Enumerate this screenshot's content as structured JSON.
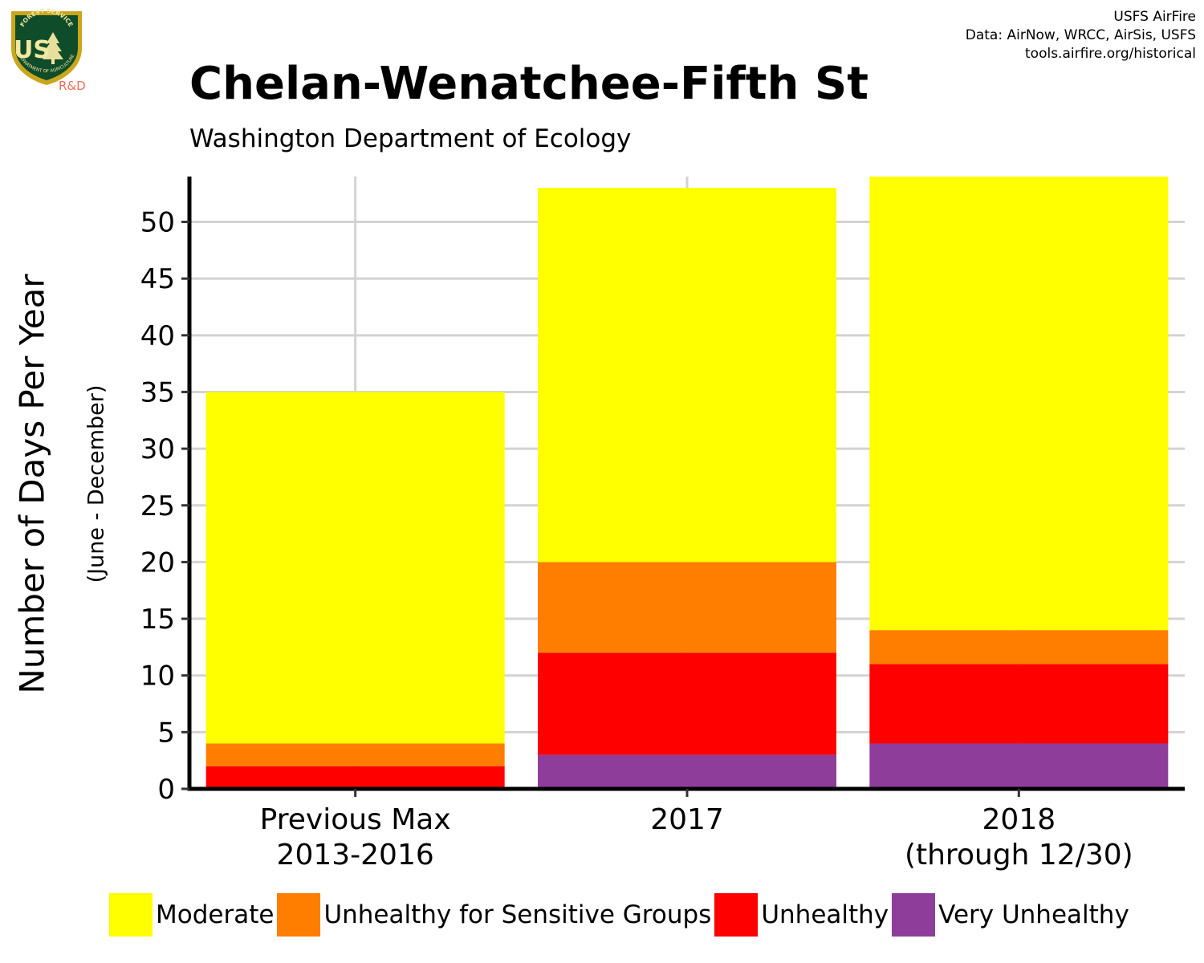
{
  "credits": {
    "line1": "USFS AirFire",
    "line2": "Data: AirNow, WRCC, AirSis, USFS",
    "line3": "tools.airfire.org/historical"
  },
  "logo": {
    "icon": "usfs-shield-icon",
    "text_top": "FOREST SERVICE",
    "text_main": "US",
    "text_bottom": "DEPARTMENT OF AGRICULTURE",
    "badge": "R&D"
  },
  "chart_data": {
    "type": "bar",
    "stacked": true,
    "title": "Chelan-Wenatchee-Fifth St",
    "subtitle": "Washington Department of Ecology",
    "ylabel": "Number of Days Per Year",
    "ysublabel": "(June - December)",
    "xlabel": "",
    "ylim": [
      0,
      54
    ],
    "yticks": [
      0,
      5,
      10,
      15,
      20,
      25,
      30,
      35,
      40,
      45,
      50
    ],
    "grid": true,
    "categories": [
      [
        "Previous Max",
        "2013-2016"
      ],
      [
        "2017"
      ],
      [
        "2018",
        "(through 12/30)"
      ]
    ],
    "series": [
      {
        "name": "Very Unhealthy",
        "color": "#8e3e9a",
        "values": [
          0,
          3,
          4
        ]
      },
      {
        "name": "Unhealthy",
        "color": "#ff0000",
        "values": [
          2,
          9,
          7
        ]
      },
      {
        "name": "Unhealthy for Sensitive Groups",
        "color": "#ff7e00",
        "values": [
          2,
          8,
          3
        ]
      },
      {
        "name": "Moderate",
        "color": "#ffff00",
        "values": [
          31,
          33,
          40
        ]
      }
    ],
    "legend_order": [
      "Moderate",
      "Unhealthy for Sensitive Groups",
      "Unhealthy",
      "Very Unhealthy"
    ],
    "legend_position": "bottom"
  }
}
